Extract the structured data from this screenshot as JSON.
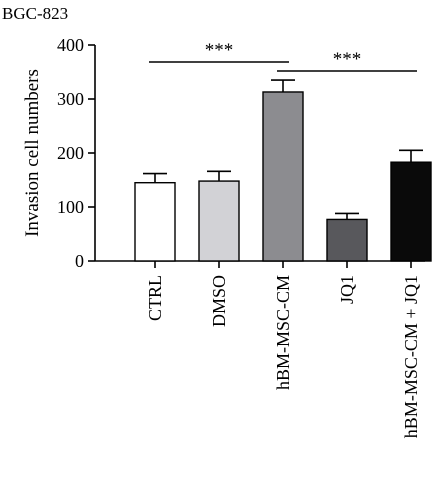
{
  "chart_data": {
    "type": "bar",
    "title": "BGC-823",
    "ylabel": "Invasion cell numbers",
    "xlabel": "",
    "ylim": [
      0,
      400
    ],
    "yticks": [
      0,
      100,
      200,
      300,
      400
    ],
    "categories": [
      "CTRL",
      "DMSO",
      "hBM-MSC-CM",
      "JQ1",
      "hBM-MSC-CM + JQ1"
    ],
    "values": [
      145,
      148,
      313,
      77,
      183
    ],
    "errors": [
      17,
      18,
      22,
      11,
      22
    ],
    "bar_colors": [
      "#ffffff",
      "#d2d2d6",
      "#8c8c90",
      "#58585c",
      "#0a0a0a"
    ],
    "significance": [
      {
        "from": 0,
        "to": 2,
        "label": "***"
      },
      {
        "from": 2,
        "to": 4,
        "label": "***"
      }
    ]
  }
}
